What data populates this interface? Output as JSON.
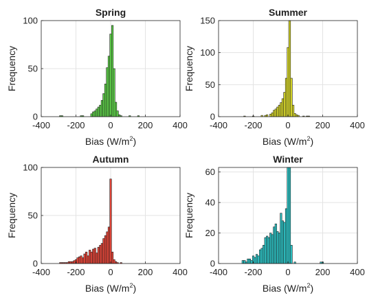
{
  "chart_data": [
    {
      "type": "bar",
      "title": "Spring",
      "xlabel": "Bias (W/m",
      "xlabel_sup": "2",
      "xlabel_close": ")",
      "ylabel": "Frequency",
      "xlim": [
        -400,
        400
      ],
      "ylim": [
        0,
        100
      ],
      "xticks": [
        -400,
        -200,
        0,
        200,
        400
      ],
      "yticks": [
        0,
        50,
        100
      ],
      "grid": true,
      "color": "#5fd24a",
      "bin_width": 10,
      "bins": [
        {
          "x": -290,
          "v": 1
        },
        {
          "x": -280,
          "v": 1
        },
        {
          "x": -170,
          "v": 1
        },
        {
          "x": -160,
          "v": 1
        },
        {
          "x": -110,
          "v": 3
        },
        {
          "x": -100,
          "v": 5
        },
        {
          "x": -90,
          "v": 6
        },
        {
          "x": -80,
          "v": 8
        },
        {
          "x": -70,
          "v": 10
        },
        {
          "x": -60,
          "v": 12
        },
        {
          "x": -50,
          "v": 17
        },
        {
          "x": -40,
          "v": 24
        },
        {
          "x": -30,
          "v": 34
        },
        {
          "x": -20,
          "v": 51
        },
        {
          "x": -10,
          "v": 63
        },
        {
          "x": 0,
          "v": 86
        },
        {
          "x": 10,
          "v": 95
        },
        {
          "x": 20,
          "v": 50
        },
        {
          "x": 30,
          "v": 15
        },
        {
          "x": 40,
          "v": 6
        },
        {
          "x": 50,
          "v": 2
        },
        {
          "x": 60,
          "v": 1
        },
        {
          "x": 110,
          "v": 1
        },
        {
          "x": 160,
          "v": 1
        }
      ]
    },
    {
      "type": "bar",
      "title": "Summer",
      "xlabel": "Bias (W/m",
      "xlabel_sup": "2",
      "xlabel_close": ")",
      "ylabel": "Frequency",
      "xlim": [
        -400,
        400
      ],
      "ylim": [
        0,
        150
      ],
      "xticks": [
        -400,
        -200,
        0,
        200,
        400
      ],
      "yticks": [
        0,
        50,
        100,
        150
      ],
      "grid": true,
      "color": "#dada2b",
      "bin_width": 10,
      "bins": [
        {
          "x": -250,
          "v": 1
        },
        {
          "x": -200,
          "v": 1
        },
        {
          "x": -150,
          "v": 2
        },
        {
          "x": -130,
          "v": 2
        },
        {
          "x": -120,
          "v": 3
        },
        {
          "x": -100,
          "v": 4
        },
        {
          "x": -90,
          "v": 6
        },
        {
          "x": -80,
          "v": 10
        },
        {
          "x": -70,
          "v": 12
        },
        {
          "x": -60,
          "v": 15
        },
        {
          "x": -50,
          "v": 18
        },
        {
          "x": -40,
          "v": 22
        },
        {
          "x": -30,
          "v": 28
        },
        {
          "x": -20,
          "v": 38
        },
        {
          "x": -10,
          "v": 60
        },
        {
          "x": 0,
          "v": 108
        },
        {
          "x": 10,
          "v": 150
        },
        {
          "x": 20,
          "v": 60
        },
        {
          "x": 30,
          "v": 18
        },
        {
          "x": 40,
          "v": 5
        },
        {
          "x": 50,
          "v": 3
        },
        {
          "x": 60,
          "v": 2
        },
        {
          "x": 90,
          "v": 1
        },
        {
          "x": 110,
          "v": 1
        },
        {
          "x": 120,
          "v": 1
        }
      ]
    },
    {
      "type": "bar",
      "title": "Autumn",
      "xlabel": "Bias (W/m",
      "xlabel_sup": "2",
      "xlabel_close": ")",
      "ylabel": "Frequency",
      "xlim": [
        -400,
        400
      ],
      "ylim": [
        0,
        100
      ],
      "xticks": [
        -400,
        -200,
        0,
        200,
        400
      ],
      "yticks": [
        0,
        50,
        100
      ],
      "grid": true,
      "color": "#e8473a",
      "bin_width": 10,
      "bins": [
        {
          "x": -290,
          "v": 1
        },
        {
          "x": -280,
          "v": 1
        },
        {
          "x": -270,
          "v": 1
        },
        {
          "x": -260,
          "v": 1
        },
        {
          "x": -250,
          "v": 1
        },
        {
          "x": -240,
          "v": 2
        },
        {
          "x": -230,
          "v": 2
        },
        {
          "x": -220,
          "v": 2
        },
        {
          "x": -210,
          "v": 3
        },
        {
          "x": -200,
          "v": 4
        },
        {
          "x": -190,
          "v": 6
        },
        {
          "x": -180,
          "v": 7
        },
        {
          "x": -170,
          "v": 8
        },
        {
          "x": -160,
          "v": 6
        },
        {
          "x": -150,
          "v": 10
        },
        {
          "x": -140,
          "v": 12
        },
        {
          "x": -130,
          "v": 8
        },
        {
          "x": -120,
          "v": 14
        },
        {
          "x": -110,
          "v": 12
        },
        {
          "x": -100,
          "v": 15
        },
        {
          "x": -90,
          "v": 16
        },
        {
          "x": -80,
          "v": 11
        },
        {
          "x": -70,
          "v": 17
        },
        {
          "x": -60,
          "v": 19
        },
        {
          "x": -50,
          "v": 21
        },
        {
          "x": -40,
          "v": 26
        },
        {
          "x": -30,
          "v": 29
        },
        {
          "x": -20,
          "v": 33
        },
        {
          "x": -10,
          "v": 38
        },
        {
          "x": 0,
          "v": 88
        },
        {
          "x": 10,
          "v": 12
        },
        {
          "x": 20,
          "v": 4
        },
        {
          "x": 30,
          "v": 2
        },
        {
          "x": 40,
          "v": 1
        },
        {
          "x": 60,
          "v": 1
        }
      ]
    },
    {
      "type": "bar",
      "title": "Winter",
      "xlabel": "Bias (W/m",
      "xlabel_sup": "2",
      "xlabel_close": ")",
      "ylabel": "Frequency",
      "xlim": [
        -400,
        400
      ],
      "ylim": [
        0,
        63
      ],
      "xticks": [
        -400,
        -200,
        0,
        200,
        400
      ],
      "yticks": [
        0,
        20,
        40,
        60
      ],
      "grid": true,
      "color": "#2ec6c8",
      "bin_width": 10,
      "bins": [
        {
          "x": -260,
          "v": 2
        },
        {
          "x": -250,
          "v": 2
        },
        {
          "x": -240,
          "v": 1
        },
        {
          "x": -230,
          "v": 3
        },
        {
          "x": -220,
          "v": 3
        },
        {
          "x": -210,
          "v": 2
        },
        {
          "x": -200,
          "v": 5
        },
        {
          "x": -190,
          "v": 4
        },
        {
          "x": -180,
          "v": 6
        },
        {
          "x": -170,
          "v": 5
        },
        {
          "x": -160,
          "v": 9
        },
        {
          "x": -150,
          "v": 10
        },
        {
          "x": -140,
          "v": 12
        },
        {
          "x": -130,
          "v": 17
        },
        {
          "x": -120,
          "v": 18
        },
        {
          "x": -110,
          "v": 17
        },
        {
          "x": -100,
          "v": 20
        },
        {
          "x": -90,
          "v": 19
        },
        {
          "x": -80,
          "v": 24
        },
        {
          "x": -70,
          "v": 26
        },
        {
          "x": -60,
          "v": 21
        },
        {
          "x": -50,
          "v": 20
        },
        {
          "x": -40,
          "v": 33
        },
        {
          "x": -30,
          "v": 28
        },
        {
          "x": -20,
          "v": 27
        },
        {
          "x": -10,
          "v": 36
        },
        {
          "x": 0,
          "v": 63
        },
        {
          "x": 10,
          "v": 63
        },
        {
          "x": 20,
          "v": 12
        },
        {
          "x": 40,
          "v": 1
        },
        {
          "x": 190,
          "v": 1
        },
        {
          "x": 200,
          "v": 1
        }
      ]
    }
  ]
}
